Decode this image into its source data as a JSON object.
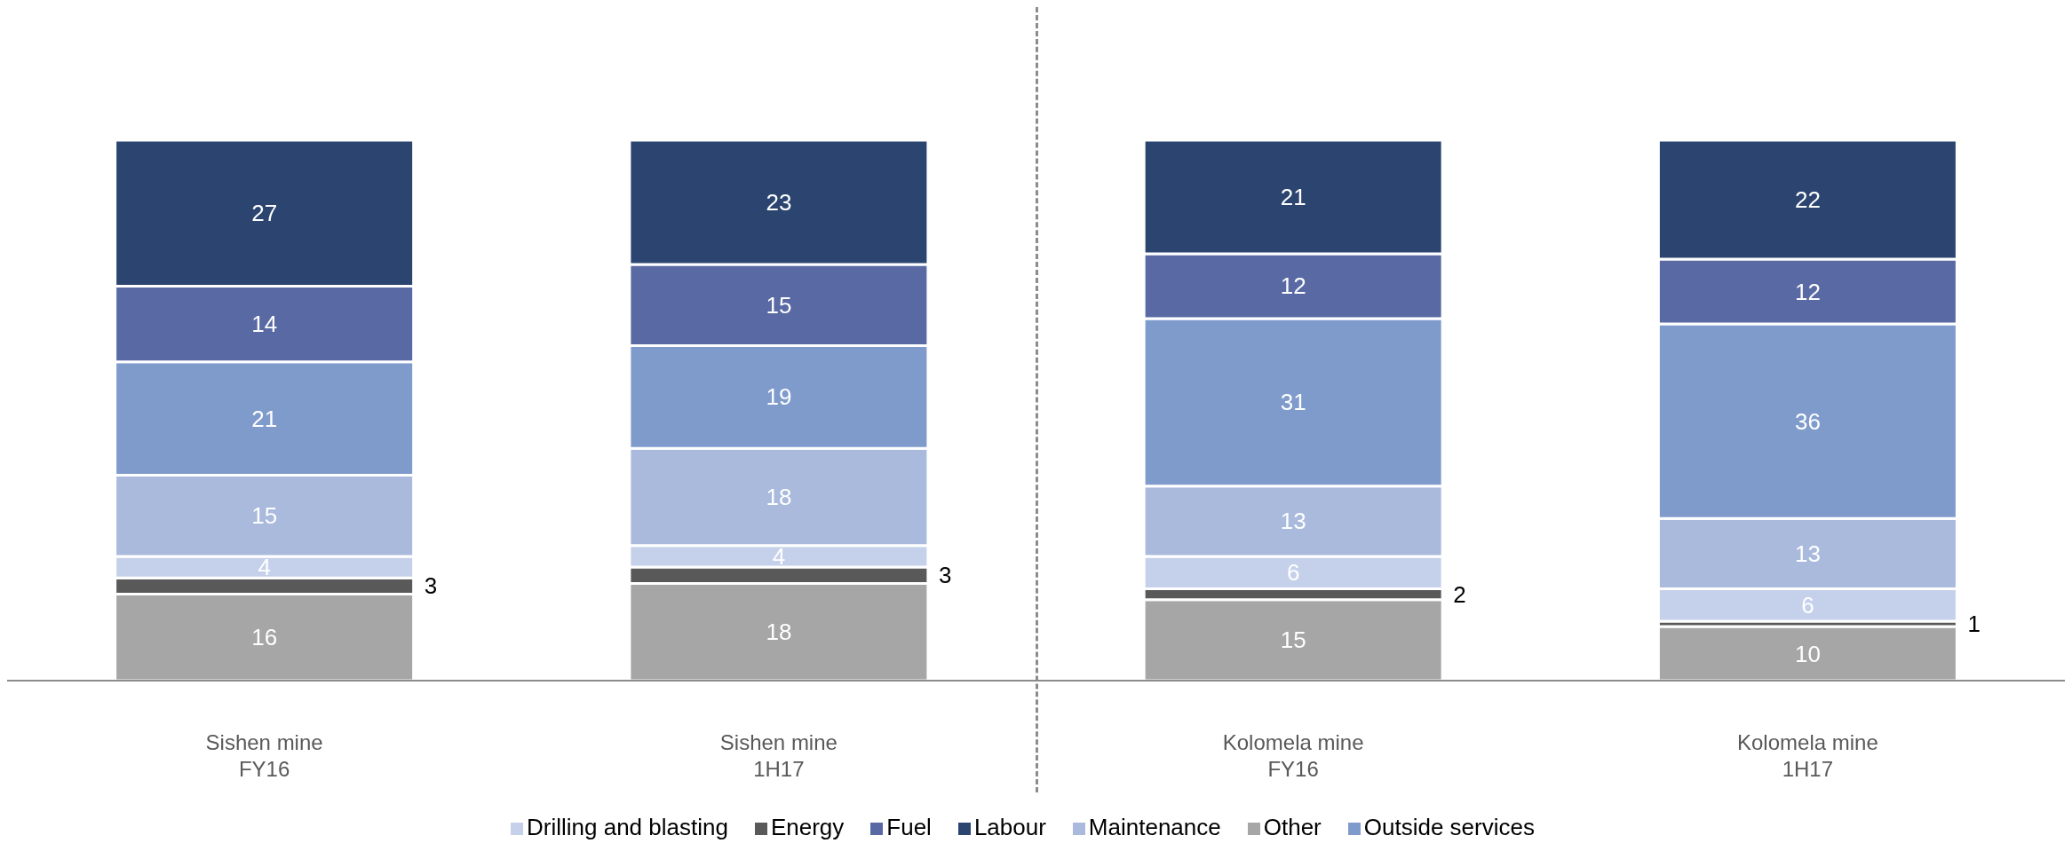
{
  "chart_data": {
    "type": "bar",
    "stacked": true,
    "data_labels": true,
    "legend": "bottom",
    "categories": [
      "Sishen mine\nFY16",
      "Sishen mine\n1H17",
      "Kolomela mine\nFY16",
      "Kolomela mine\n1H17"
    ],
    "series": [
      {
        "name": "Other",
        "color": "#a6a6a6",
        "values": [
          16,
          18,
          15,
          10
        ]
      },
      {
        "name": "Energy",
        "color": "#595959",
        "values": [
          3,
          3,
          2,
          1
        ]
      },
      {
        "name": "Drilling and blasting",
        "color": "#c5d1ea",
        "values": [
          4,
          4,
          6,
          6
        ]
      },
      {
        "name": "Maintenance",
        "color": "#a9badd",
        "values": [
          15,
          18,
          13,
          13
        ]
      },
      {
        "name": "Outside services",
        "color": "#7f9bcc",
        "values": [
          21,
          19,
          31,
          36
        ]
      },
      {
        "name": "Fuel",
        "color": "#5869a3",
        "values": [
          14,
          15,
          12,
          12
        ]
      },
      {
        "name": "Labour",
        "color": "#2b4570",
        "values": [
          27,
          23,
          21,
          22
        ]
      }
    ]
  }
}
